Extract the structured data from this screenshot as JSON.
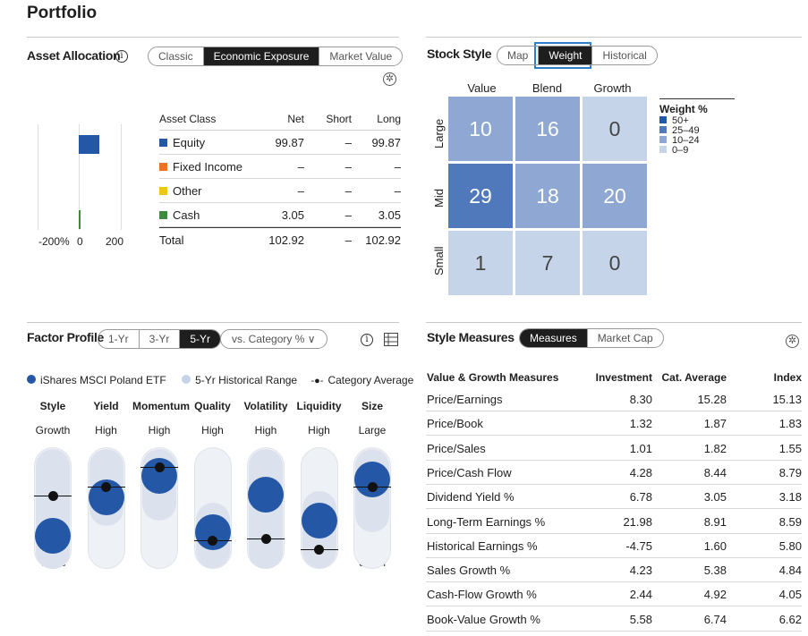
{
  "page": {
    "title": "Portfolio"
  },
  "asset_allocation": {
    "title": "Asset Allocation",
    "tabs": [
      "Classic",
      "Economic Exposure",
      "Market Value"
    ],
    "active_tab": "Economic Exposure",
    "axis_ticks": [
      "-200%",
      "0",
      "200"
    ],
    "headers": {
      "asset_class": "Asset Class",
      "net": "Net",
      "short": "Short",
      "long": "Long"
    },
    "rows": [
      {
        "name": "Equity",
        "net": "99.87",
        "short": "–",
        "long": "99.87",
        "color": "#2458a6",
        "net_value": 99.87
      },
      {
        "name": "Fixed Income",
        "net": "–",
        "short": "–",
        "long": "–",
        "color": "#e8742c",
        "net_value": 0
      },
      {
        "name": "Other",
        "net": "–",
        "short": "–",
        "long": "–",
        "color": "#f2c511",
        "net_value": 0
      },
      {
        "name": "Cash",
        "net": "3.05",
        "short": "–",
        "long": "3.05",
        "color": "#3e8a3e",
        "net_value": 3.05
      }
    ],
    "total": {
      "name": "Total",
      "net": "102.92",
      "short": "–",
      "long": "102.92"
    }
  },
  "stock_style": {
    "title": "Stock Style",
    "tabs": [
      "Map",
      "Weight",
      "Historical"
    ],
    "active_tab": "Weight",
    "columns": [
      "Value",
      "Blend",
      "Growth"
    ],
    "rows": [
      "Large",
      "Mid",
      "Small"
    ],
    "weights": [
      [
        "10",
        "16",
        "0"
      ],
      [
        "29",
        "18",
        "20"
      ],
      [
        "1",
        "7",
        "0"
      ]
    ],
    "legend_title": "Weight %",
    "legend": [
      {
        "label": "50+",
        "color": "#2458a6"
      },
      {
        "label": "25–49",
        "color": "#5079bc"
      },
      {
        "label": "10–24",
        "color": "#8ea7d3"
      },
      {
        "label": "0–9",
        "color": "#c6d4ea"
      }
    ]
  },
  "factor_profile": {
    "title": "Factor Profile",
    "tabs": [
      "1-Yr",
      "3-Yr",
      "5-Yr"
    ],
    "active_tab": "5-Yr",
    "comparison_select": "vs. Category %",
    "legend": {
      "fund": "iShares MSCI Poland ETF",
      "range": "5-Yr Historical Range",
      "category": "Category Average"
    },
    "factors": [
      {
        "name": "Style",
        "high": "Growth",
        "low": "Value",
        "fund": 0.18,
        "category": 0.62,
        "range": [
          0,
          1
        ]
      },
      {
        "name": "Yield",
        "high": "High",
        "low": "Low",
        "fund": 0.62,
        "category": 0.7,
        "range": [
          0.35,
          1
        ]
      },
      {
        "name": "Momentum",
        "high": "High",
        "low": "Low",
        "fund": 0.88,
        "category": 0.88,
        "range": [
          0.4,
          1
        ]
      },
      {
        "name": "Quality",
        "high": "High",
        "low": "Low",
        "fund": 0.22,
        "category": 0.2,
        "range": [
          0,
          0.55
        ]
      },
      {
        "name": "Volatility",
        "high": "High",
        "low": "Low",
        "fund": 0.66,
        "category": 0.22,
        "range": [
          0,
          1
        ]
      },
      {
        "name": "Liquidity",
        "high": "High",
        "low": "Low",
        "fund": 0.35,
        "category": 0.12,
        "range": [
          0,
          0.65
        ]
      },
      {
        "name": "Size",
        "high": "Large",
        "low": "Small",
        "fund": 0.83,
        "category": 0.7,
        "range": [
          0.3,
          1
        ]
      }
    ]
  },
  "style_measures": {
    "title": "Style Measures",
    "tabs": [
      "Measures",
      "Market Cap"
    ],
    "active_tab": "Measures",
    "headers": {
      "measure": "Value & Growth Measures",
      "investment": "Investment",
      "cat_avg": "Cat. Average",
      "index": "Index"
    },
    "rows": [
      {
        "measure": "Price/Earnings",
        "investment": "8.30",
        "cat_avg": "15.28",
        "index": "15.13"
      },
      {
        "measure": "Price/Book",
        "investment": "1.32",
        "cat_avg": "1.87",
        "index": "1.83"
      },
      {
        "measure": "Price/Sales",
        "investment": "1.01",
        "cat_avg": "1.82",
        "index": "1.55"
      },
      {
        "measure": "Price/Cash Flow",
        "investment": "4.28",
        "cat_avg": "8.44",
        "index": "8.79"
      },
      {
        "measure": "Dividend Yield %",
        "investment": "6.78",
        "cat_avg": "3.05",
        "index": "3.18"
      },
      {
        "measure": "Long-Term Earnings %",
        "investment": "21.98",
        "cat_avg": "8.91",
        "index": "8.59"
      },
      {
        "measure": "Historical Earnings %",
        "investment": "-4.75",
        "cat_avg": "1.60",
        "index": "5.80"
      },
      {
        "measure": "Sales Growth %",
        "investment": "4.23",
        "cat_avg": "5.38",
        "index": "4.84"
      },
      {
        "measure": "Cash-Flow Growth %",
        "investment": "2.44",
        "cat_avg": "4.92",
        "index": "4.05"
      },
      {
        "measure": "Book-Value Growth %",
        "investment": "5.58",
        "cat_avg": "6.74",
        "index": "6.62"
      }
    ]
  }
}
